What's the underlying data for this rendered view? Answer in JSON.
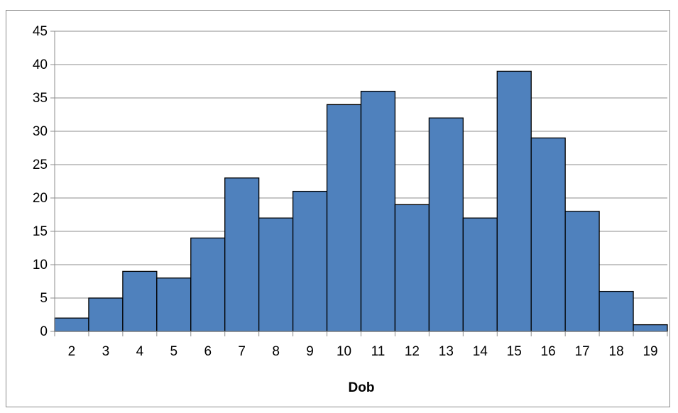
{
  "chart_data": {
    "type": "bar",
    "title": "",
    "xlabel": "Dob",
    "ylabel": "",
    "categories": [
      "2",
      "3",
      "4",
      "5",
      "6",
      "7",
      "8",
      "9",
      "10",
      "11",
      "12",
      "13",
      "14",
      "15",
      "16",
      "17",
      "18",
      "19"
    ],
    "values": [
      2,
      5,
      9,
      8,
      14,
      23,
      17,
      21,
      34,
      36,
      19,
      32,
      17,
      39,
      29,
      18,
      6,
      1
    ],
    "ylim": [
      0,
      45
    ],
    "yticks": [
      "0",
      "5",
      "10",
      "15",
      "20",
      "25",
      "30",
      "35",
      "40",
      "45"
    ],
    "grid": true,
    "legend": "none",
    "bar_color": "#4f81bd",
    "bar_edge_color": "#000000",
    "grid_color": "#8c8c8c"
  }
}
